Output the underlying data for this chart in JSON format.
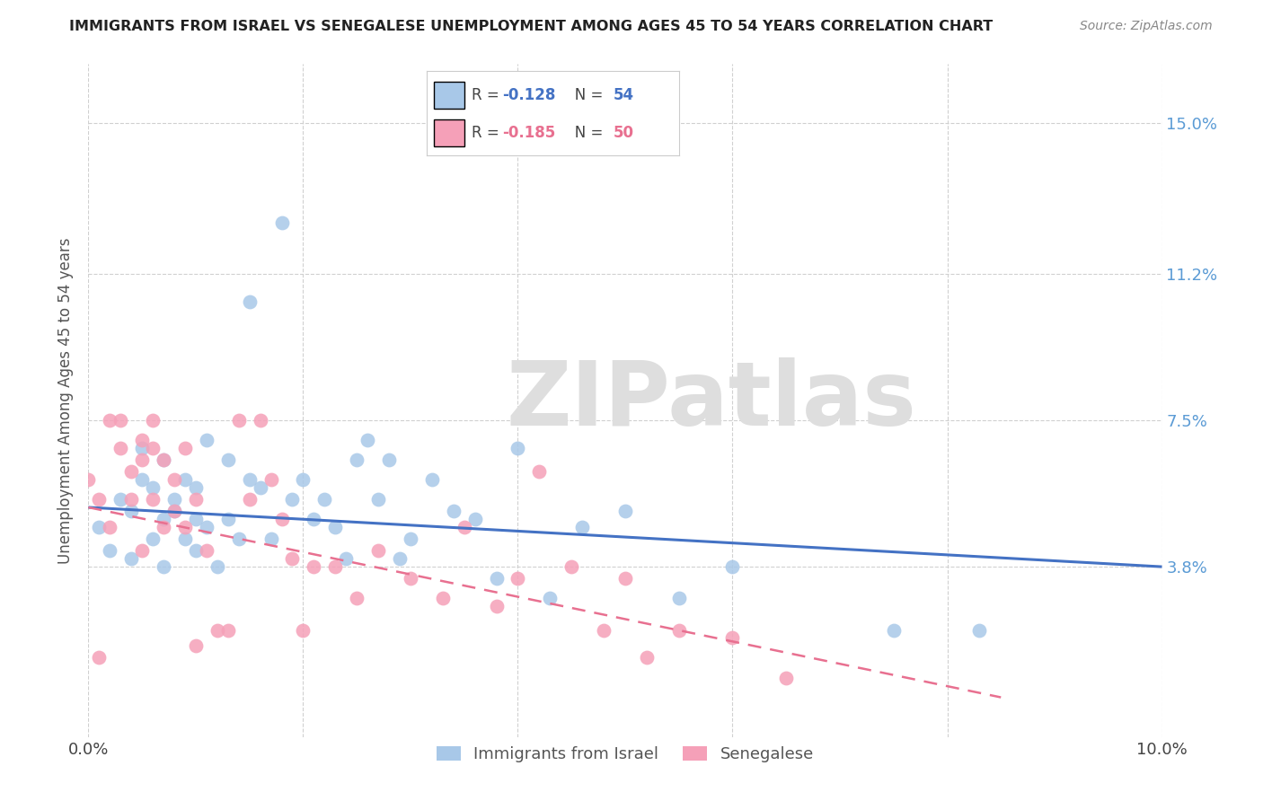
{
  "title": "IMMIGRANTS FROM ISRAEL VS SENEGALESE UNEMPLOYMENT AMONG AGES 45 TO 54 YEARS CORRELATION CHART",
  "source": "Source: ZipAtlas.com",
  "ylabel": "Unemployment Among Ages 45 to 54 years",
  "y_tick_labels": [
    "15.0%",
    "11.2%",
    "7.5%",
    "3.8%"
  ],
  "y_tick_vals": [
    0.15,
    0.112,
    0.075,
    0.038
  ],
  "x_ticks": [
    0.0,
    0.02,
    0.04,
    0.06,
    0.08,
    0.1
  ],
  "xlim": [
    0.0,
    0.1
  ],
  "ylim": [
    -0.005,
    0.165
  ],
  "legend_israel": "R = -0.128   N = 54",
  "legend_senegal": "R = -0.185   N = 50",
  "legend_label_israel": "Immigrants from Israel",
  "legend_label_senegal": "Senegalese",
  "color_israel": "#a8c8e8",
  "color_senegal": "#f5a0b8",
  "color_israel_line": "#4472c4",
  "color_senegal_line": "#e87090",
  "color_right_axis": "#5b9bd5",
  "watermark": "ZIPatlas",
  "israel_scatter_x": [
    0.001,
    0.002,
    0.003,
    0.004,
    0.004,
    0.005,
    0.005,
    0.006,
    0.006,
    0.007,
    0.007,
    0.007,
    0.008,
    0.008,
    0.009,
    0.009,
    0.01,
    0.01,
    0.01,
    0.011,
    0.011,
    0.012,
    0.013,
    0.013,
    0.014,
    0.015,
    0.015,
    0.016,
    0.017,
    0.018,
    0.019,
    0.02,
    0.021,
    0.022,
    0.023,
    0.024,
    0.025,
    0.026,
    0.027,
    0.028,
    0.029,
    0.03,
    0.032,
    0.034,
    0.036,
    0.038,
    0.04,
    0.043,
    0.046,
    0.05,
    0.055,
    0.06,
    0.075,
    0.083
  ],
  "israel_scatter_y": [
    0.048,
    0.042,
    0.055,
    0.04,
    0.052,
    0.06,
    0.068,
    0.045,
    0.058,
    0.05,
    0.038,
    0.065,
    0.052,
    0.055,
    0.045,
    0.06,
    0.042,
    0.05,
    0.058,
    0.048,
    0.07,
    0.038,
    0.05,
    0.065,
    0.045,
    0.105,
    0.06,
    0.058,
    0.045,
    0.125,
    0.055,
    0.06,
    0.05,
    0.055,
    0.048,
    0.04,
    0.065,
    0.07,
    0.055,
    0.065,
    0.04,
    0.045,
    0.06,
    0.052,
    0.05,
    0.035,
    0.068,
    0.03,
    0.048,
    0.052,
    0.03,
    0.038,
    0.022,
    0.022
  ],
  "senegal_scatter_x": [
    0.0,
    0.001,
    0.001,
    0.002,
    0.002,
    0.003,
    0.003,
    0.004,
    0.004,
    0.005,
    0.005,
    0.005,
    0.006,
    0.006,
    0.006,
    0.007,
    0.007,
    0.008,
    0.008,
    0.009,
    0.009,
    0.01,
    0.01,
    0.011,
    0.012,
    0.013,
    0.014,
    0.015,
    0.016,
    0.017,
    0.018,
    0.019,
    0.02,
    0.021,
    0.023,
    0.025,
    0.027,
    0.03,
    0.033,
    0.035,
    0.038,
    0.04,
    0.042,
    0.045,
    0.048,
    0.05,
    0.052,
    0.055,
    0.06,
    0.065
  ],
  "senegal_scatter_y": [
    0.06,
    0.015,
    0.055,
    0.048,
    0.075,
    0.068,
    0.075,
    0.062,
    0.055,
    0.042,
    0.065,
    0.07,
    0.055,
    0.068,
    0.075,
    0.048,
    0.065,
    0.052,
    0.06,
    0.048,
    0.068,
    0.055,
    0.018,
    0.042,
    0.022,
    0.022,
    0.075,
    0.055,
    0.075,
    0.06,
    0.05,
    0.04,
    0.022,
    0.038,
    0.038,
    0.03,
    0.042,
    0.035,
    0.03,
    0.048,
    0.028,
    0.035,
    0.062,
    0.038,
    0.022,
    0.035,
    0.015,
    0.022,
    0.02,
    0.01
  ],
  "israel_trend_x": [
    0.0,
    0.1
  ],
  "israel_trend_y": [
    0.053,
    0.038
  ],
  "senegal_trend_x": [
    0.0,
    0.085
  ],
  "senegal_trend_y": [
    0.053,
    0.005
  ]
}
